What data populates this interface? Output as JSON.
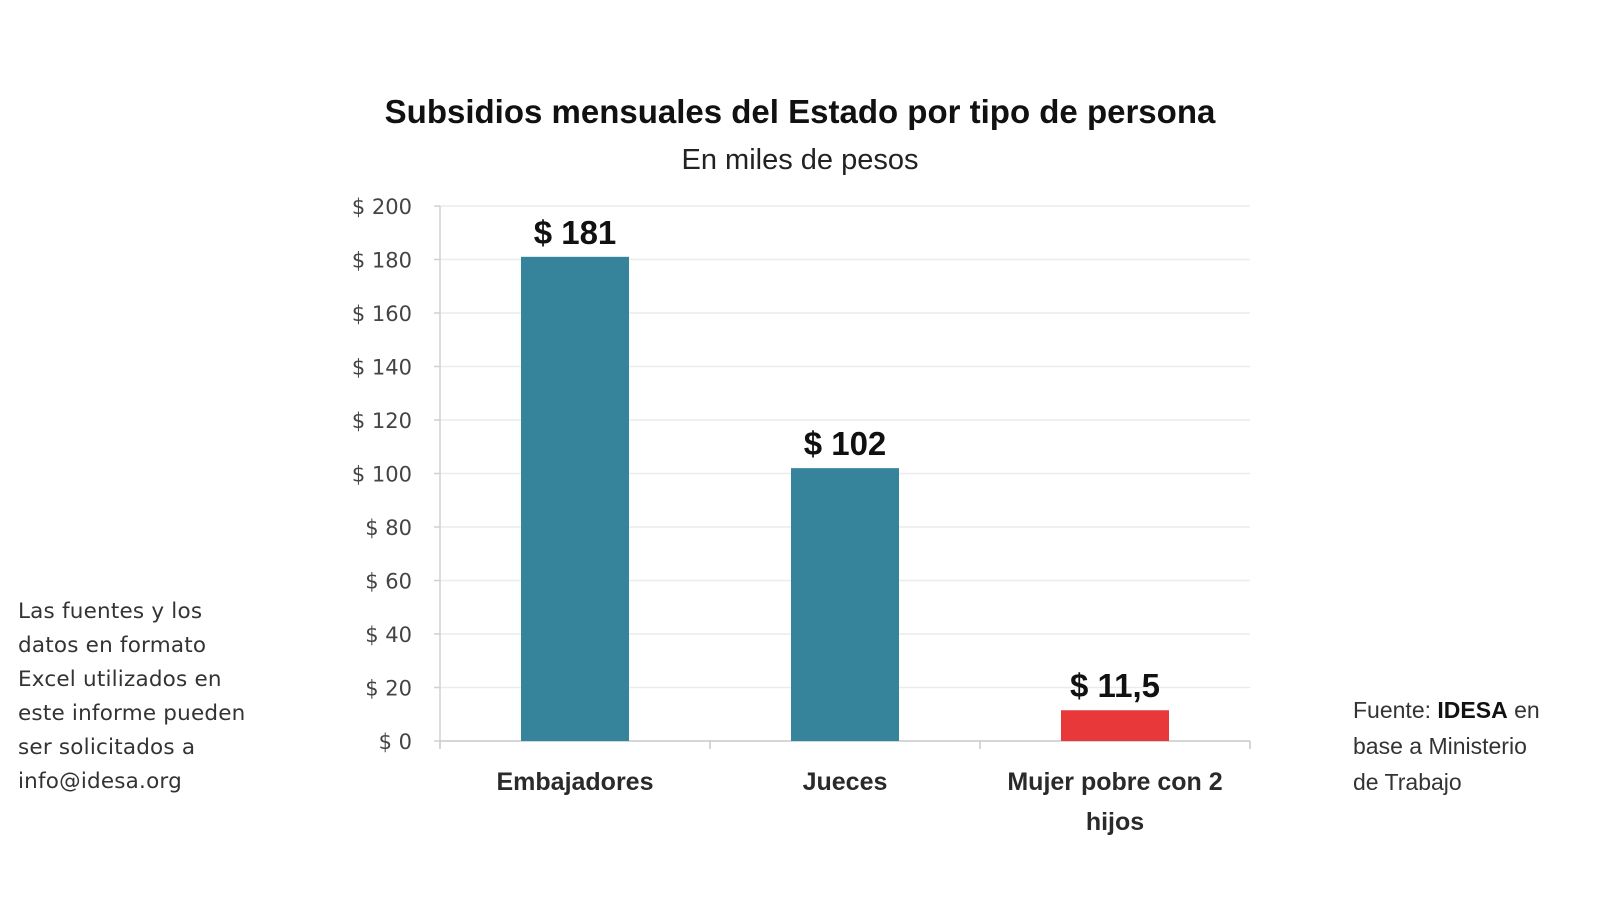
{
  "chart_data": {
    "type": "bar",
    "title": "Subsidios mensuales del Estado por tipo de persona",
    "subtitle": "En miles de pesos",
    "categories": [
      "Embajadores",
      "Jueces",
      "Mujer pobre con 2 hijos"
    ],
    "category_label_lines": [
      [
        "Embajadores"
      ],
      [
        "Jueces"
      ],
      [
        "Mujer pobre con 2",
        "hijos"
      ]
    ],
    "values": [
      181,
      102,
      11.5
    ],
    "data_labels": [
      "$ 181",
      "$ 102",
      "$ 11,5"
    ],
    "bar_colors": [
      "#35849c",
      "#35849c",
      "#e8383a"
    ],
    "ylim": [
      0,
      200
    ],
    "y_ticks": [
      0,
      20,
      40,
      60,
      80,
      100,
      120,
      140,
      160,
      180,
      200
    ],
    "y_tick_labels": [
      "$ 0",
      "$ 20",
      "$ 40",
      "$ 60",
      "$ 80",
      "$ 100",
      "$ 120",
      "$ 140",
      "$ 160",
      "$ 180",
      "$ 200"
    ],
    "grid": true,
    "gridline_color": "#ececec",
    "xlabel": "",
    "ylabel": ""
  },
  "notes": {
    "left_lines": [
      "Las fuentes y los",
      "datos en formato",
      "Excel utilizados en",
      "este informe pueden",
      "ser solicitados a",
      "info@idesa.org"
    ],
    "source": {
      "prefix": "Fuente: ",
      "org": "IDESA",
      "suffix": " en",
      "line2": "base a Ministerio",
      "line3": "de Trabajo"
    }
  }
}
